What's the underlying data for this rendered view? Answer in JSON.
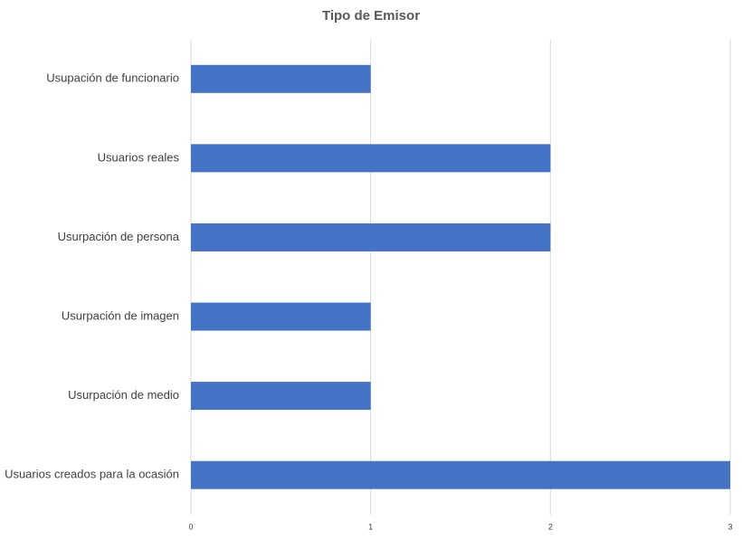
{
  "chart_data": {
    "type": "bar",
    "orientation": "horizontal",
    "title": "Tipo de Emisor",
    "categories": [
      "Usupación de funcionario",
      "Usuarios reales",
      "Usurpación de persona",
      "Usurpación de imagen",
      "Usurpación de medio",
      "Usuarios creados para la ocasión"
    ],
    "values": [
      1,
      2,
      2,
      1,
      1,
      3
    ],
    "color": "#4472c4",
    "xlim": [
      0,
      3
    ],
    "xticks": [
      0,
      1,
      2,
      3
    ],
    "grid": true
  }
}
